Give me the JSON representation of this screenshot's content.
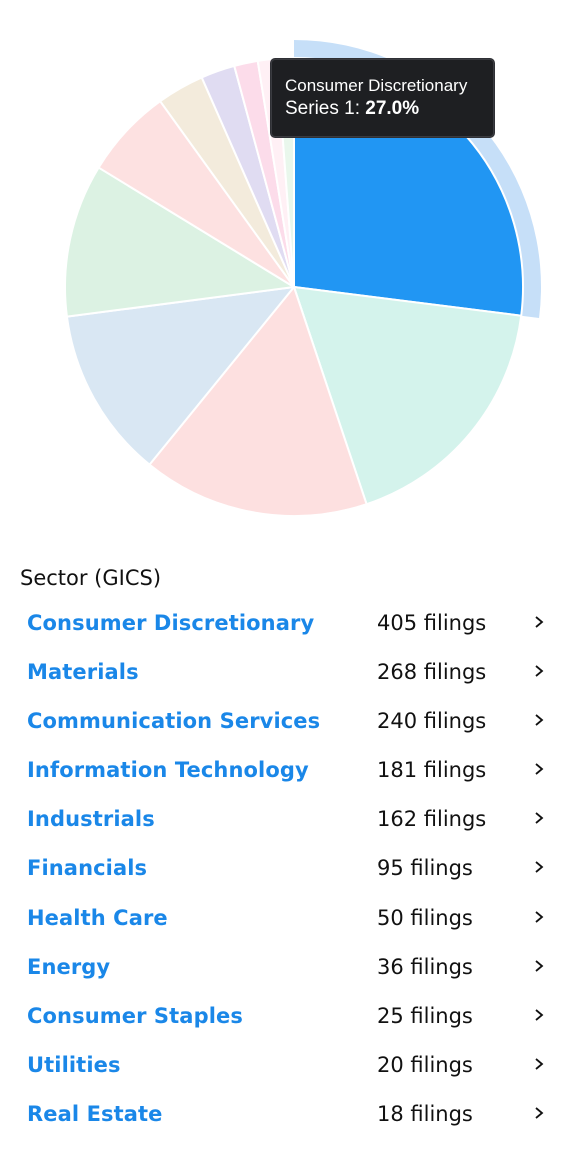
{
  "chart_data": {
    "type": "pie",
    "series_name": "Series 1",
    "slices": [
      {
        "label": "Consumer Discretionary",
        "value": 405,
        "color": "#2196f3",
        "highlighted": true
      },
      {
        "label": "Materials",
        "value": 268,
        "color": "#d4f3ec"
      },
      {
        "label": "Communication Services",
        "value": 240,
        "color": "#fde0e0"
      },
      {
        "label": "Information Technology",
        "value": 181,
        "color": "#d9e7f3"
      },
      {
        "label": "Industrials",
        "value": 162,
        "color": "#dcf2e3"
      },
      {
        "label": "Financials",
        "value": 95,
        "color": "#fde1e1"
      },
      {
        "label": "Health Care",
        "value": 50,
        "color": "#f3ebdc"
      },
      {
        "label": "Energy",
        "value": 36,
        "color": "#e0dcf2"
      },
      {
        "label": "Consumer Staples",
        "value": 25,
        "color": "#fcdcea"
      },
      {
        "label": "Utilities",
        "value": 20,
        "color": "#fff0f5"
      },
      {
        "label": "Real Estate",
        "value": 18,
        "color": "#e9f7ec"
      }
    ],
    "highlight_color": "#c6dff8"
  },
  "tooltip": {
    "title": "Consumer Discretionary",
    "series_label": "Series 1: ",
    "value": "27.0%"
  },
  "section": {
    "title": "Sector (GICS)"
  },
  "sectors": [
    {
      "name": "Consumer Discretionary",
      "count": "405 filings"
    },
    {
      "name": "Materials",
      "count": "268 filings"
    },
    {
      "name": "Communication Services",
      "count": "240 filings"
    },
    {
      "name": "Information Technology",
      "count": "181 filings"
    },
    {
      "name": "Industrials",
      "count": "162 filings"
    },
    {
      "name": "Financials",
      "count": "95 filings"
    },
    {
      "name": "Health Care",
      "count": "50 filings"
    },
    {
      "name": "Energy",
      "count": "36 filings"
    },
    {
      "name": "Consumer Staples",
      "count": "25 filings"
    },
    {
      "name": "Utilities",
      "count": "20 filings"
    },
    {
      "name": "Real Estate",
      "count": "18 filings"
    }
  ],
  "icons": {
    "row_chevron": "chevron-right-icon"
  }
}
